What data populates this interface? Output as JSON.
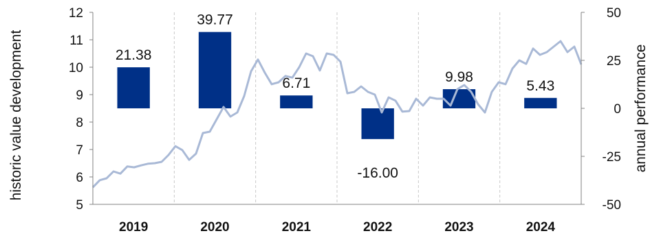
{
  "chart_data": {
    "type": "bar+line",
    "title": "",
    "ylabel_left": "historic value development",
    "ylabel_right": "annual performance",
    "xlabel": "",
    "ylim_left": [
      5,
      12
    ],
    "yticks_left": [
      5,
      6,
      7,
      8,
      9,
      10,
      11,
      12
    ],
    "ylim_right": [
      -50,
      50
    ],
    "yticks_right": [
      -50,
      -25,
      0,
      25,
      50
    ],
    "grid": "vertical-dashed",
    "categories": [
      "2019",
      "2020",
      "2021",
      "2022",
      "2023",
      "2024"
    ],
    "bar_series": {
      "values": [
        21.38,
        39.77,
        6.71,
        -16.0,
        9.98,
        5.43
      ],
      "labels": [
        "21.38",
        "39.77",
        "6.71",
        "-16.00",
        "9.98",
        "5.43"
      ],
      "color": "#003087"
    },
    "line_series": {
      "color": "#a9b9d6",
      "x_start": 2019.0,
      "x_end": 2025.0,
      "values": [
        5.62,
        5.88,
        5.95,
        6.2,
        6.12,
        6.38,
        6.35,
        6.42,
        6.48,
        6.5,
        6.55,
        6.8,
        7.12,
        6.98,
        6.62,
        6.85,
        7.6,
        7.65,
        8.1,
        8.55,
        8.2,
        8.35,
        8.95,
        9.85,
        10.28,
        9.8,
        9.38,
        9.45,
        9.68,
        9.62,
        10.0,
        10.5,
        10.4,
        9.88,
        10.5,
        10.45,
        10.2,
        9.05,
        9.1,
        9.3,
        9.1,
        9.0,
        8.35,
        8.9,
        8.78,
        8.38,
        8.4,
        8.85,
        8.6,
        8.9,
        8.85,
        8.85,
        8.6,
        9.2,
        9.35,
        9.1,
        8.65,
        8.35,
        9.1,
        9.45,
        9.38,
        9.95,
        10.25,
        10.12,
        10.68,
        10.45,
        10.55,
        10.75,
        10.95,
        10.55,
        10.75,
        10.1
      ]
    }
  }
}
